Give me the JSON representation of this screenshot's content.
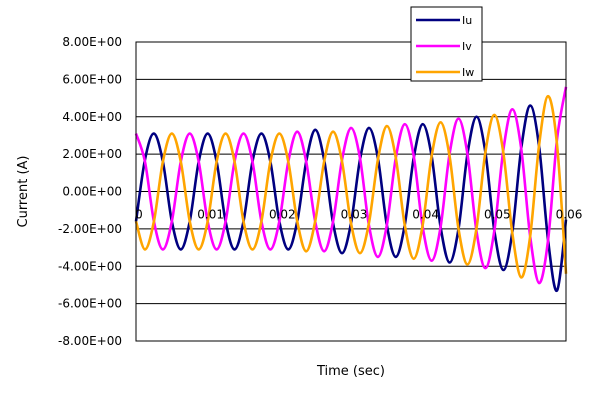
{
  "chart_data": {
    "type": "line",
    "title": "",
    "xlabel": "Time (sec)",
    "ylabel": "Current (A)",
    "xlim": [
      0,
      0.06
    ],
    "ylim": [
      -8,
      8
    ],
    "x_ticks": [
      0,
      0.01,
      0.02,
      0.03,
      0.04,
      0.05,
      0.06
    ],
    "x_tick_labels": [
      "0",
      "0.01",
      "0.02",
      "0.03",
      "0.04",
      "0.05",
      "0.06"
    ],
    "y_ticks": [
      8,
      6,
      4,
      2,
      0,
      -2,
      -4,
      -6,
      -8
    ],
    "y_tick_labels": [
      "8.00E+00",
      "6.00E+00",
      "4.00E+00",
      "2.00E+00",
      "0.00E+00",
      "-2.00E+00",
      "-4.00E+00",
      "-6.00E+00",
      "-8.00E+00"
    ],
    "grid": true,
    "legend_position": "top-right",
    "series": [
      {
        "name": "Iu",
        "color": "#000080",
        "x": [
          0,
          0.00125,
          0.0025,
          0.00375,
          0.005,
          0.00625,
          0.0075,
          0.00875,
          0.01,
          0.01125,
          0.0125,
          0.01375,
          0.015,
          0.01625,
          0.0175,
          0.01875,
          0.02,
          0.02125,
          0.0225,
          0.02375,
          0.025,
          0.02625,
          0.0275,
          0.02875,
          0.03,
          0.03125,
          0.0325,
          0.03375,
          0.035,
          0.03625,
          0.0375,
          0.03875,
          0.04,
          0.04125,
          0.0425,
          0.04375,
          0.045,
          0.04625,
          0.0475,
          0.04875,
          0.05,
          0.05125,
          0.0525,
          0.05375,
          0.055,
          0.05625,
          0.0575,
          0.05875,
          0.06
        ],
        "y": [
          -1.6,
          1.7,
          3.1,
          1.6,
          -1.6,
          -3.1,
          -1.6,
          1.6,
          3.1,
          1.6,
          -1.6,
          -3.1,
          -1.6,
          1.6,
          3.1,
          1.6,
          -1.6,
          -3.1,
          -1.6,
          1.6,
          3.3,
          1.7,
          -1.7,
          -3.3,
          -1.7,
          1.7,
          3.4,
          1.8,
          -1.8,
          -3.5,
          -1.8,
          1.8,
          3.6,
          1.9,
          -1.9,
          -3.8,
          -2.0,
          2.0,
          4.0,
          2.1,
          -2.1,
          -4.2,
          -2.2,
          2.3,
          4.6,
          2.4,
          -2.6,
          -5.3,
          -1.5
        ]
      },
      {
        "name": "Iv",
        "color": "#ff00ff",
        "x": [
          0,
          0.00125,
          0.0025,
          0.00375,
          0.005,
          0.00625,
          0.0075,
          0.00875,
          0.01,
          0.01125,
          0.0125,
          0.01375,
          0.015,
          0.01625,
          0.0175,
          0.01875,
          0.02,
          0.02125,
          0.0225,
          0.02375,
          0.025,
          0.02625,
          0.0275,
          0.02875,
          0.03,
          0.03125,
          0.0325,
          0.03375,
          0.035,
          0.03625,
          0.0375,
          0.03875,
          0.04,
          0.04125,
          0.0425,
          0.04375,
          0.045,
          0.04625,
          0.0475,
          0.04875,
          0.05,
          0.05125,
          0.0525,
          0.05375,
          0.055,
          0.05625,
          0.0575,
          0.05875,
          0.06
        ],
        "y": [
          3.1,
          1.6,
          -1.6,
          -3.1,
          -1.6,
          1.6,
          3.1,
          1.6,
          -1.6,
          -3.1,
          -1.6,
          1.6,
          3.1,
          1.6,
          -1.6,
          -3.1,
          -1.6,
          1.6,
          3.2,
          1.6,
          -1.6,
          -3.2,
          -1.6,
          1.7,
          3.4,
          1.8,
          -1.8,
          -3.5,
          -1.8,
          1.8,
          3.6,
          1.9,
          -1.9,
          -3.7,
          -1.9,
          2.0,
          3.9,
          2.0,
          -2.1,
          -4.1,
          -2.1,
          2.2,
          4.4,
          2.3,
          -2.4,
          -4.9,
          -2.6,
          2.8,
          5.6
        ]
      },
      {
        "name": "Iw",
        "color": "#ffa500",
        "x": [
          0,
          0.00125,
          0.0025,
          0.00375,
          0.005,
          0.00625,
          0.0075,
          0.00875,
          0.01,
          0.01125,
          0.0125,
          0.01375,
          0.015,
          0.01625,
          0.0175,
          0.01875,
          0.02,
          0.02125,
          0.0225,
          0.02375,
          0.025,
          0.02625,
          0.0275,
          0.02875,
          0.03,
          0.03125,
          0.0325,
          0.03375,
          0.035,
          0.03625,
          0.0375,
          0.03875,
          0.04,
          0.04125,
          0.0425,
          0.04375,
          0.045,
          0.04625,
          0.0475,
          0.04875,
          0.05,
          0.05125,
          0.0525,
          0.05375,
          0.055,
          0.05625,
          0.0575,
          0.05875,
          0.06
        ],
        "y": [
          -1.6,
          -3.1,
          -1.6,
          1.6,
          3.1,
          1.6,
          -1.6,
          -3.1,
          -1.6,
          1.6,
          3.1,
          1.6,
          -1.6,
          -3.1,
          -1.6,
          1.6,
          3.1,
          1.6,
          -1.6,
          -3.2,
          -1.6,
          1.6,
          3.2,
          1.6,
          -1.7,
          -3.3,
          -1.7,
          1.7,
          3.5,
          1.8,
          -1.8,
          -3.6,
          -1.8,
          1.9,
          3.7,
          1.9,
          -2.0,
          -3.9,
          -2.0,
          2.1,
          4.1,
          2.1,
          -2.2,
          -4.6,
          -2.4,
          2.5,
          5.1,
          2.5,
          -4.4
        ]
      }
    ]
  }
}
